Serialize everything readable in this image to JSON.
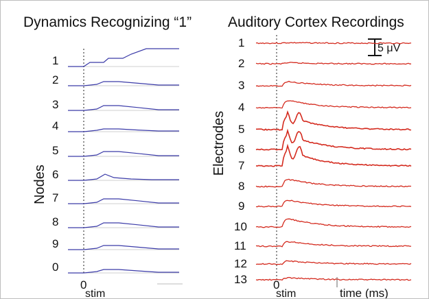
{
  "left_panel": {
    "title": "Dynamics Recognizing “1”",
    "ylabel": "Nodes",
    "zero_label": "0",
    "stim_label": "stim",
    "trace_color": "#3a3aa8",
    "nodes": [
      "1",
      "2",
      "3",
      "4",
      "5",
      "6",
      "7",
      "8",
      "9",
      "0"
    ]
  },
  "right_panel": {
    "title": "Auditory Cortex Recordings",
    "ylabel": "Electrodes",
    "zero_label": "0",
    "stim_label": "stim",
    "xlabel": "time (ms)",
    "scale_bar_label": "5 μV",
    "trace_color": "#d42a1e",
    "electrodes": [
      "1",
      "2",
      "3",
      "4",
      "5",
      "6",
      "7",
      "8",
      "9",
      "10",
      "11",
      "12",
      "13"
    ]
  }
}
